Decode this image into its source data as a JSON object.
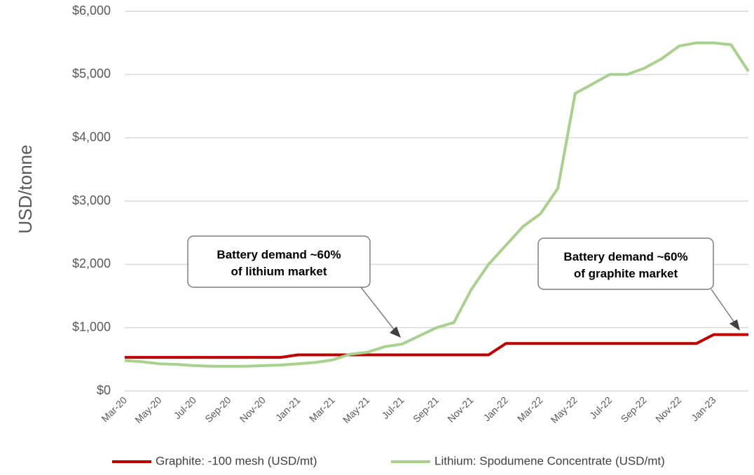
{
  "chart_data": {
    "type": "line",
    "y_label": "USD/tonne",
    "categories": [
      "Mar-20",
      null,
      "May-20",
      null,
      "Jul-20",
      null,
      "Sep-20",
      null,
      "Nov-20",
      null,
      "Jan-21",
      null,
      "Mar-21",
      null,
      "May-21",
      null,
      "Jul-21",
      null,
      "Sep-21",
      null,
      "Nov-21",
      null,
      "Jan-22",
      null,
      "Mar-22",
      null,
      "May-22",
      null,
      "Jul-22",
      null,
      "Sep-22",
      null,
      "Nov-22",
      null,
      "Jan-23",
      null,
      null
    ],
    "series": [
      {
        "name": "Graphite: -100 mesh (USD/mt)",
        "color": "#c00000",
        "values": [
          530,
          530,
          530,
          530,
          530,
          530,
          530,
          530,
          530,
          530,
          570,
          570,
          570,
          570,
          570,
          570,
          570,
          570,
          570,
          570,
          570,
          570,
          750,
          750,
          750,
          750,
          750,
          750,
          750,
          750,
          750,
          750,
          750,
          750,
          890,
          890,
          890
        ]
      },
      {
        "name": "Lithium: Spodumene Concentrate  (USD/mt)",
        "color": "#a9d18e",
        "values": [
          480,
          460,
          430,
          420,
          400,
          390,
          390,
          390,
          400,
          410,
          430,
          450,
          490,
          580,
          610,
          700,
          740,
          870,
          1000,
          1080,
          1600,
          2000,
          2300,
          2600,
          2800,
          3200,
          4700,
          4850,
          5000,
          5000,
          5100,
          5250,
          5450,
          5500,
          5500,
          5470,
          5050
        ]
      }
    ],
    "ylim": [
      0,
      6000
    ],
    "yticks": [
      {
        "value": 0,
        "label": "$0"
      },
      {
        "value": 1000,
        "label": "$1,000"
      },
      {
        "value": 2000,
        "label": "$2,000"
      },
      {
        "value": 3000,
        "label": "$3,000"
      },
      {
        "value": 4000,
        "label": "$4,000"
      },
      {
        "value": 5000,
        "label": "$5,000"
      },
      {
        "value": 6000,
        "label": "$6,000"
      }
    ],
    "grid": true,
    "legend": "bottom",
    "annotations": [
      {
        "lines": [
          "Battery demand ~60%",
          "of lithium market"
        ]
      },
      {
        "lines": [
          "Battery demand ~60%",
          "of graphite market"
        ]
      }
    ]
  }
}
